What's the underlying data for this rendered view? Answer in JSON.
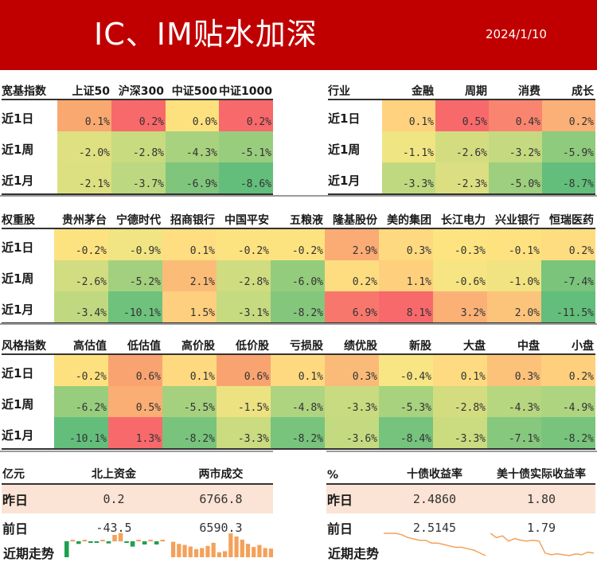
{
  "header": {
    "title": "IC、IM贴水加深",
    "date": "2024/1/10"
  },
  "broad_index": {
    "title": "宽基指数",
    "columns": [
      "上证50",
      "沪深300",
      "中证500",
      "中证1000"
    ],
    "rows": [
      {
        "label": "近1日",
        "values": [
          "0.1%",
          "0.2%",
          "0.0%",
          "0.2%"
        ],
        "colors": [
          "#f9a870",
          "#f8696b",
          "#fee17f",
          "#f8696b"
        ]
      },
      {
        "label": "近1周",
        "values": [
          "-2.0%",
          "-2.8%",
          "-4.3%",
          "-5.1%"
        ],
        "colors": [
          "#dfe081",
          "#c8db7f",
          "#a8d27e",
          "#98cd7e"
        ]
      },
      {
        "label": "近1月",
        "values": [
          "-2.1%",
          "-3.7%",
          "-6.9%",
          "-8.6%"
        ],
        "colors": [
          "#dde080",
          "#bcd880",
          "#7fc67c",
          "#63be7b"
        ]
      }
    ]
  },
  "industry": {
    "title": "行业",
    "columns": [
      "金融",
      "周期",
      "消费",
      "成长"
    ],
    "rows": [
      {
        "label": "近1日",
        "values": [
          "0.1%",
          "0.5%",
          "0.4%",
          "0.2%"
        ],
        "colors": [
          "#fed27f",
          "#f8696b",
          "#f98570",
          "#fbb077"
        ]
      },
      {
        "label": "近1周",
        "values": [
          "-1.1%",
          "-2.6%",
          "-3.2%",
          "-5.9%"
        ],
        "colors": [
          "#f0e583",
          "#d3dd80",
          "#c5da80",
          "#8fcb7d"
        ]
      },
      {
        "label": "近1月",
        "values": [
          "-3.3%",
          "-2.3%",
          "-5.0%",
          "-8.7%"
        ],
        "colors": [
          "#bfd980",
          "#dbdf81",
          "#9dcf7e",
          "#63be7b"
        ]
      }
    ]
  },
  "heavyweights": {
    "title": "权重股",
    "columns": [
      "贵州茅台",
      "宁德时代",
      "招商银行",
      "中国平安",
      "五粮液",
      "隆基股份",
      "美的集团",
      "长江电力",
      "兴业银行",
      "恒瑞医药"
    ],
    "rows": [
      {
        "label": "近1日",
        "values": [
          "-0.2%",
          "-0.9%",
          "0.1%",
          "-0.2%",
          "-0.2%",
          "2.9%",
          "0.3%",
          "-0.3%",
          "-0.1%",
          "0.2%"
        ],
        "colors": [
          "#fde37f",
          "#f1e482",
          "#fede80",
          "#fde37f",
          "#fde37f",
          "#fbab74",
          "#fed980",
          "#fde480",
          "#fee280",
          "#fedc80"
        ]
      },
      {
        "label": "近1周",
        "values": [
          "-2.6%",
          "-5.2%",
          "2.1%",
          "-2.8%",
          "-6.0%",
          "0.2%",
          "1.1%",
          "-0.6%",
          "-1.0%",
          "-7.4%"
        ],
        "colors": [
          "#d2dd81",
          "#a3d07e",
          "#fbbc78",
          "#cfdc80",
          "#94cc7d",
          "#fedd80",
          "#fed07d",
          "#f7e483",
          "#f1e382",
          "#7ac47c"
        ]
      },
      {
        "label": "近1月",
        "values": [
          "-3.4%",
          "-10.1%",
          "1.5%",
          "-3.1%",
          "-8.2%",
          "6.9%",
          "8.1%",
          "3.2%",
          "2.0%",
          "-11.5%"
        ],
        "colors": [
          "#c0d980",
          "#6ec27c",
          "#fecf7e",
          "#c6da80",
          "#84c77c",
          "#f8776d",
          "#f8696b",
          "#fbb176",
          "#fcc47b",
          "#63be7b"
        ]
      }
    ]
  },
  "style_index": {
    "title": "风格指数",
    "columns": [
      "高估值",
      "低估值",
      "高价股",
      "低价股",
      "亏损股",
      "绩优股",
      "新股",
      "大盘",
      "中盘",
      "小盘"
    ],
    "rows": [
      {
        "label": "近1日",
        "values": [
          "-0.2%",
          "0.6%",
          "0.1%",
          "0.6%",
          "0.1%",
          "0.3%",
          "-0.4%",
          "0.1%",
          "0.3%",
          "0.2%"
        ],
        "colors": [
          "#fee17f",
          "#f9a470",
          "#fed980",
          "#f9a470",
          "#fed980",
          "#fbbb78",
          "#f8e583",
          "#fedb80",
          "#fcc27a",
          "#fed07d"
        ]
      },
      {
        "label": "近1周",
        "values": [
          "-6.2%",
          "0.5%",
          "-5.5%",
          "-1.5%",
          "-4.8%",
          "-3.3%",
          "-5.3%",
          "-2.8%",
          "-4.3%",
          "-4.9%"
        ],
        "colors": [
          "#98cd7e",
          "#fbae73",
          "#a5d17f",
          "#ece282",
          "#afd47f",
          "#c9db80",
          "#a8d27e",
          "#d3dd80",
          "#b7d680",
          "#aed47f"
        ]
      },
      {
        "label": "近1月",
        "values": [
          "-10.1%",
          "1.3%",
          "-8.2%",
          "-3.3%",
          "-8.2%",
          "-3.6%",
          "-8.4%",
          "-3.3%",
          "-7.1%",
          "-8.2%"
        ],
        "colors": [
          "#63be7b",
          "#f8696b",
          "#78c47c",
          "#cadb80",
          "#78c47c",
          "#c4da80",
          "#75c37c",
          "#cadb80",
          "#86c87d",
          "#78c47c"
        ]
      }
    ]
  },
  "funds": {
    "unit": "亿元",
    "columns": [
      "北上资金",
      "两市成交"
    ],
    "rows": [
      {
        "label": "昨日",
        "values": [
          "0.2",
          "6766.8"
        ]
      },
      {
        "label": "前日",
        "values": [
          "-43.5",
          "6590.3"
        ]
      }
    ],
    "trend_label": "近期走势"
  },
  "yields": {
    "unit": "%",
    "columns": [
      "十债收益率",
      "美十债实际收益率"
    ],
    "rows": [
      {
        "label": "昨日",
        "values": [
          "2.4860",
          "1.80"
        ]
      },
      {
        "label": "前日",
        "values": [
          "2.5145",
          "1.79"
        ]
      }
    ],
    "trend_label": "近期走势"
  },
  "colors": {
    "banner": "#c00000",
    "highlight_row": "#fbe4d5",
    "spark_orange": "#f4a15a",
    "spark_green": "#1fa04f"
  },
  "chart_data": [
    {
      "type": "bar",
      "title": "北上资金 近期走势",
      "values": [
        -30,
        5,
        -5,
        4,
        -3,
        -3,
        1,
        -4,
        20,
        26,
        -1,
        -10,
        2,
        -6,
        3,
        -6,
        1
      ],
      "note": "sparkline, positive orange, negative green, approximate"
    },
    {
      "type": "bar",
      "title": "两市成交 近期走势",
      "values": [
        7400,
        7200,
        7100,
        6950,
        6700,
        6800,
        7000,
        7300,
        6400,
        6500,
        8200,
        7900,
        7600,
        7200,
        6900,
        7100,
        6800,
        6750
      ],
      "note": "sparkline, approximate"
    },
    {
      "type": "line",
      "title": "十债收益率 近期走势",
      "values": [
        2.65,
        2.65,
        2.65,
        2.64,
        2.62,
        2.61,
        2.6,
        2.6,
        2.58,
        2.58,
        2.57,
        2.56,
        2.55,
        2.55,
        2.54,
        2.53,
        2.51,
        2.49
      ],
      "note": "sparkline, approximate"
    },
    {
      "type": "line",
      "title": "美十债实际收益率 近期走势",
      "values": [
        2.05,
        2.0,
        2.02,
        1.96,
        1.99,
        1.97,
        1.96,
        1.97,
        1.96,
        1.82,
        1.8,
        1.81,
        1.8,
        1.79,
        1.81,
        1.8,
        1.83,
        1.82
      ],
      "note": "sparkline, approximate"
    }
  ]
}
